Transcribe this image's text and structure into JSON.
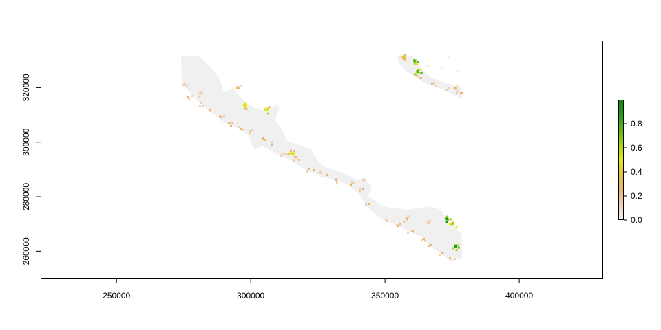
{
  "chart_data": {
    "type": "heatmap",
    "title": "",
    "xlabel": "",
    "ylabel": "",
    "xlim": [
      222000,
      431000
    ],
    "ylim": [
      250000,
      337000
    ],
    "x_ticks": [
      {
        "value": 250000,
        "label": "250000"
      },
      {
        "value": 300000,
        "label": "300000"
      },
      {
        "value": 350000,
        "label": "350000"
      },
      {
        "value": 400000,
        "label": "400000"
      }
    ],
    "y_ticks": [
      {
        "value": 260000,
        "label": "260000"
      },
      {
        "value": 280000,
        "label": "280000"
      },
      {
        "value": 300000,
        "label": "300000"
      },
      {
        "value": 320000,
        "label": "320000"
      }
    ],
    "colorbar": {
      "range": [
        0,
        1
      ],
      "ticks": [
        {
          "value": 0.0,
          "label": "0.0"
        },
        {
          "value": 0.2,
          "label": "0.2"
        },
        {
          "value": 0.4,
          "label": "0.4"
        },
        {
          "value": 0.6,
          "label": "0.6"
        },
        {
          "value": 0.8,
          "label": "0.8"
        }
      ],
      "colors": [
        "#f2f2f2",
        "#eecfb4",
        "#e8b66e",
        "#dfc340",
        "#e6e61a",
        "#a6d21a",
        "#5ab714",
        "#1e9b14",
        "#0c8a0a"
      ]
    },
    "background_color": "#f0f0f0",
    "hotspots": [
      {
        "x": 376000,
        "y": 262000,
        "value": 0.85
      },
      {
        "x": 373000,
        "y": 272000,
        "value": 0.9
      },
      {
        "x": 375000,
        "y": 270000,
        "value": 0.6
      },
      {
        "x": 366000,
        "y": 270500,
        "value": 0.15
      },
      {
        "x": 358000,
        "y": 272000,
        "value": 0.2
      },
      {
        "x": 306000,
        "y": 312000,
        "value": 0.5
      },
      {
        "x": 298000,
        "y": 313500,
        "value": 0.55
      },
      {
        "x": 295000,
        "y": 320000,
        "value": 0.3
      },
      {
        "x": 315000,
        "y": 296000,
        "value": 0.5
      },
      {
        "x": 361000,
        "y": 330000,
        "value": 0.8
      },
      {
        "x": 362000,
        "y": 326000,
        "value": 0.7
      },
      {
        "x": 357000,
        "y": 331000,
        "value": 0.35
      },
      {
        "x": 376000,
        "y": 320000,
        "value": 0.3
      },
      {
        "x": 281000,
        "y": 318000,
        "value": 0.15
      },
      {
        "x": 326000,
        "y": 289000,
        "value": 0.15
      },
      {
        "x": 342000,
        "y": 286000,
        "value": 0.12
      }
    ]
  }
}
